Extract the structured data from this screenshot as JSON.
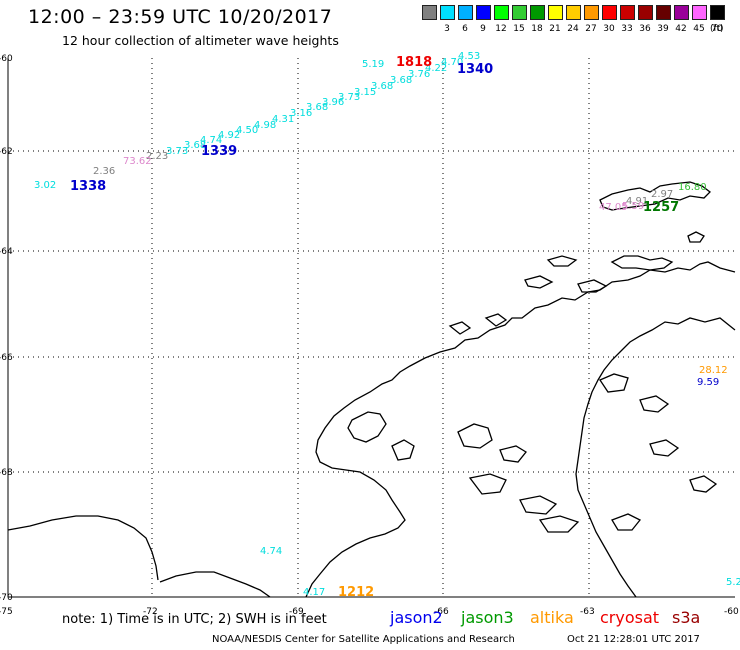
{
  "header": {
    "title": "12:00 – 23:59 UTC 10/20/2017",
    "subtitle": "12 hour collection of altimeter wave heights"
  },
  "colorbar": {
    "unit_label": "(ft)",
    "cells": [
      {
        "color": "#808080",
        "label": ""
      },
      {
        "color": "#00e0ff",
        "label": "3"
      },
      {
        "color": "#00b0ff",
        "label": "6"
      },
      {
        "color": "#0000ff",
        "label": "9"
      },
      {
        "color": "#00ff00",
        "label": "12"
      },
      {
        "color": "#33cc33",
        "label": "15"
      },
      {
        "color": "#009900",
        "label": "18"
      },
      {
        "color": "#ffff00",
        "label": "21"
      },
      {
        "color": "#ffcc00",
        "label": "24"
      },
      {
        "color": "#ff9900",
        "label": "27"
      },
      {
        "color": "#ff0000",
        "label": "30"
      },
      {
        "color": "#cc0000",
        "label": "33"
      },
      {
        "color": "#990000",
        "label": "36"
      },
      {
        "color": "#660000",
        "label": "39"
      },
      {
        "color": "#990099",
        "label": "42"
      },
      {
        "color": "#ff66ff",
        "label": "45"
      },
      {
        "color": "#000000",
        "label": "70"
      }
    ]
  },
  "axes": {
    "lat_labels": [
      "-60",
      "-62",
      "-64",
      "-66",
      "-68",
      "-70"
    ],
    "lon_labels": [
      "-75",
      "-72",
      "-69",
      "-66",
      "-63",
      "-60"
    ]
  },
  "wave_heights": [
    {
      "v": "5.19",
      "color": "#00dddd"
    },
    {
      "v": "4.53",
      "color": "#00dddd"
    },
    {
      "v": "4.70",
      "color": "#00dddd"
    },
    {
      "v": "4.22",
      "color": "#00dddd"
    },
    {
      "v": "3.76",
      "color": "#00dddd"
    },
    {
      "v": "3.68",
      "color": "#00dddd"
    },
    {
      "v": "3.68",
      "color": "#00dddd"
    },
    {
      "v": "3.15",
      "color": "#00dddd"
    },
    {
      "v": "3.73",
      "color": "#00dddd"
    },
    {
      "v": "3.96",
      "color": "#00dddd"
    },
    {
      "v": "3.68",
      "color": "#00dddd"
    },
    {
      "v": "3.16",
      "color": "#00dddd"
    },
    {
      "v": "4.31",
      "color": "#00dddd"
    },
    {
      "v": "4.98",
      "color": "#00dddd"
    },
    {
      "v": "4.50",
      "color": "#00dddd"
    },
    {
      "v": "4.92",
      "color": "#00dddd"
    },
    {
      "v": "4.74",
      "color": "#00dddd"
    },
    {
      "v": "3.68",
      "color": "#00dddd"
    },
    {
      "v": "3.73",
      "color": "#00dddd"
    },
    {
      "v": "2.23",
      "color": "#808080"
    },
    {
      "v": "73.62",
      "color": "#dd88cc"
    },
    {
      "v": "2.36",
      "color": "#808080"
    },
    {
      "v": "3.02",
      "color": "#00dddd"
    },
    {
      "v": "16.80",
      "color": "#33bb33"
    },
    {
      "v": "2.97",
      "color": "#808080"
    },
    {
      "v": "4.91",
      "color": "#808080"
    },
    {
      "v": "47.05",
      "color": "#dd88cc"
    },
    {
      "v": "5.59",
      "color": "#dd88cc"
    },
    {
      "v": "28.12",
      "color": "#ff9900"
    },
    {
      "v": "9.59",
      "color": "#0000cc"
    },
    {
      "v": "4.74",
      "color": "#00dddd"
    },
    {
      "v": "4.17",
      "color": "#00dddd"
    },
    {
      "v": "5.2",
      "color": "#00dddd"
    }
  ],
  "pass_times": [
    {
      "t": "1818",
      "color": "#ee0000"
    },
    {
      "t": "1340",
      "color": "#0000cc"
    },
    {
      "t": "1339",
      "color": "#0000cc"
    },
    {
      "t": "1338",
      "color": "#0000cc"
    },
    {
      "t": "1257",
      "color": "#007700"
    },
    {
      "t": "1212",
      "color": "#ff9900"
    }
  ],
  "footer": {
    "note": "note:  1) Time is in UTC;  2) SWH is in feet",
    "satellites": [
      {
        "name": "jason2",
        "color": "#0000ee"
      },
      {
        "name": "jason3",
        "color": "#009900"
      },
      {
        "name": "altika",
        "color": "#ff9900"
      },
      {
        "name": "cryosat",
        "color": "#ee0000"
      },
      {
        "name": "s3a",
        "color": "#990000"
      }
    ],
    "credit": "NOAA/NESDIS Center for Satellite Applications and Research",
    "issued": "Oct 21 12:28:01 UTC 2017"
  }
}
